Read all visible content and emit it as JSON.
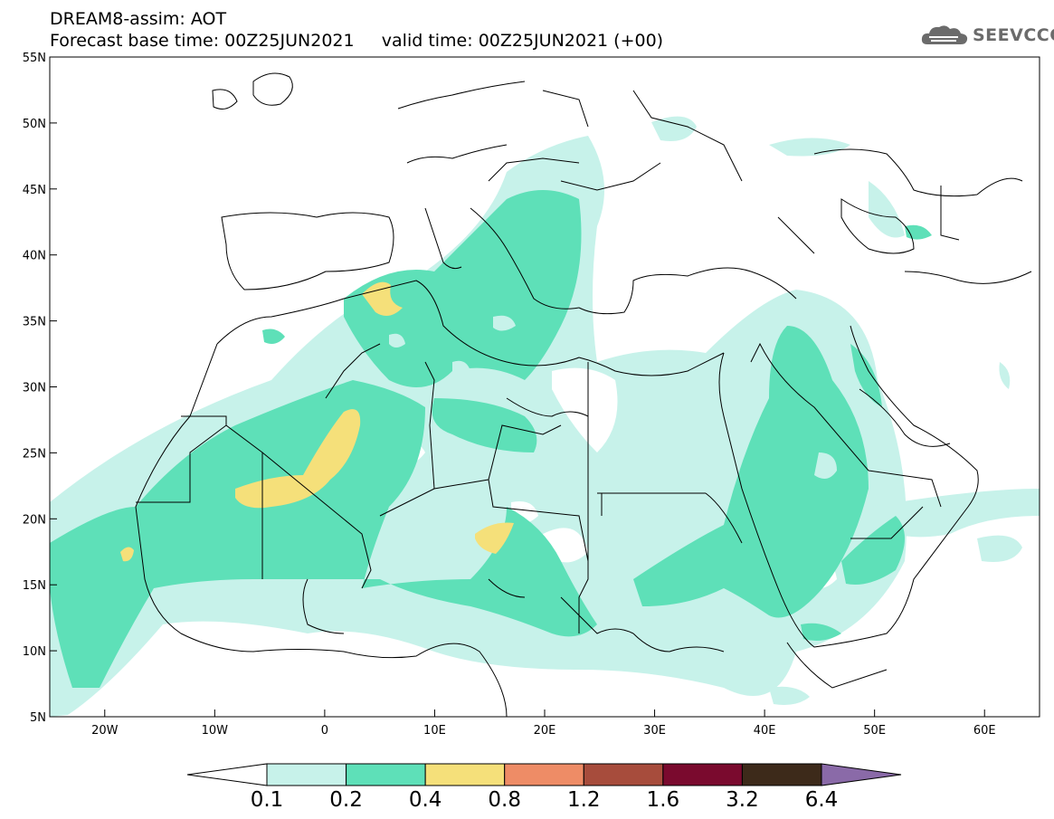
{
  "header": {
    "line1": "DREAM8-assim: AOT",
    "line2": "Forecast base time: 00Z25JUN2021     valid time: 00Z25JUN2021 (+00)"
  },
  "logo": {
    "text": "SEEVCCC",
    "icon": "cloud-icon",
    "color": "#6b6b6b"
  },
  "map": {
    "lon_range": [
      -25,
      65
    ],
    "lat_range": [
      5,
      55
    ],
    "lon_ticks": [
      "20W",
      "10W",
      "0",
      "10E",
      "20E",
      "30E",
      "40E",
      "50E",
      "60E"
    ],
    "lat_ticks": [
      "55N",
      "50N",
      "45N",
      "40N",
      "35N",
      "30N",
      "25N",
      "20N",
      "15N",
      "10N",
      "5N"
    ]
  },
  "colorbar": {
    "levels": [
      "0.1",
      "0.2",
      "0.4",
      "0.8",
      "1.2",
      "1.6",
      "3.2",
      "6.4"
    ],
    "colors": [
      "#ffffff",
      "#c7f2ea",
      "#5ee0b8",
      "#f5e07a",
      "#ee8c66",
      "#a74c3c",
      "#7a0a2e",
      "#3d2a1a",
      "#8a6aa8"
    ]
  }
}
